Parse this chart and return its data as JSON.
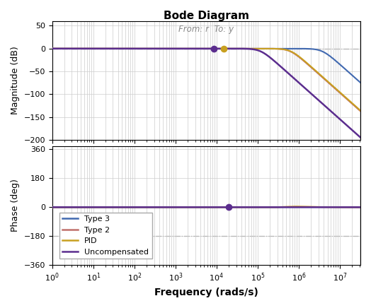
{
  "title": "Bode Diagram",
  "subtitle": "From: r  To: y",
  "xlabel": "Frequency (rads/s)",
  "ylabel_mag": "Magnitude (dB)",
  "ylabel_phase": "Phase (deg)",
  "mag_ylim": [
    -200,
    60
  ],
  "phase_ylim": [
    -360,
    380
  ],
  "mag_yticks": [
    50,
    0,
    -50,
    -100,
    -150,
    -200
  ],
  "phase_yticks": [
    360,
    180,
    0,
    -180,
    -360
  ],
  "colors": {
    "type3": "#4169b0",
    "type2": "#c0706a",
    "pid": "#c8a020",
    "uncompensated": "#5b2d8e"
  },
  "legend_labels": [
    "Type 3",
    "Type 2",
    "PID",
    "Uncompensated"
  ],
  "dashed_line_color": "#909090",
  "grid_color": "#cccccc"
}
